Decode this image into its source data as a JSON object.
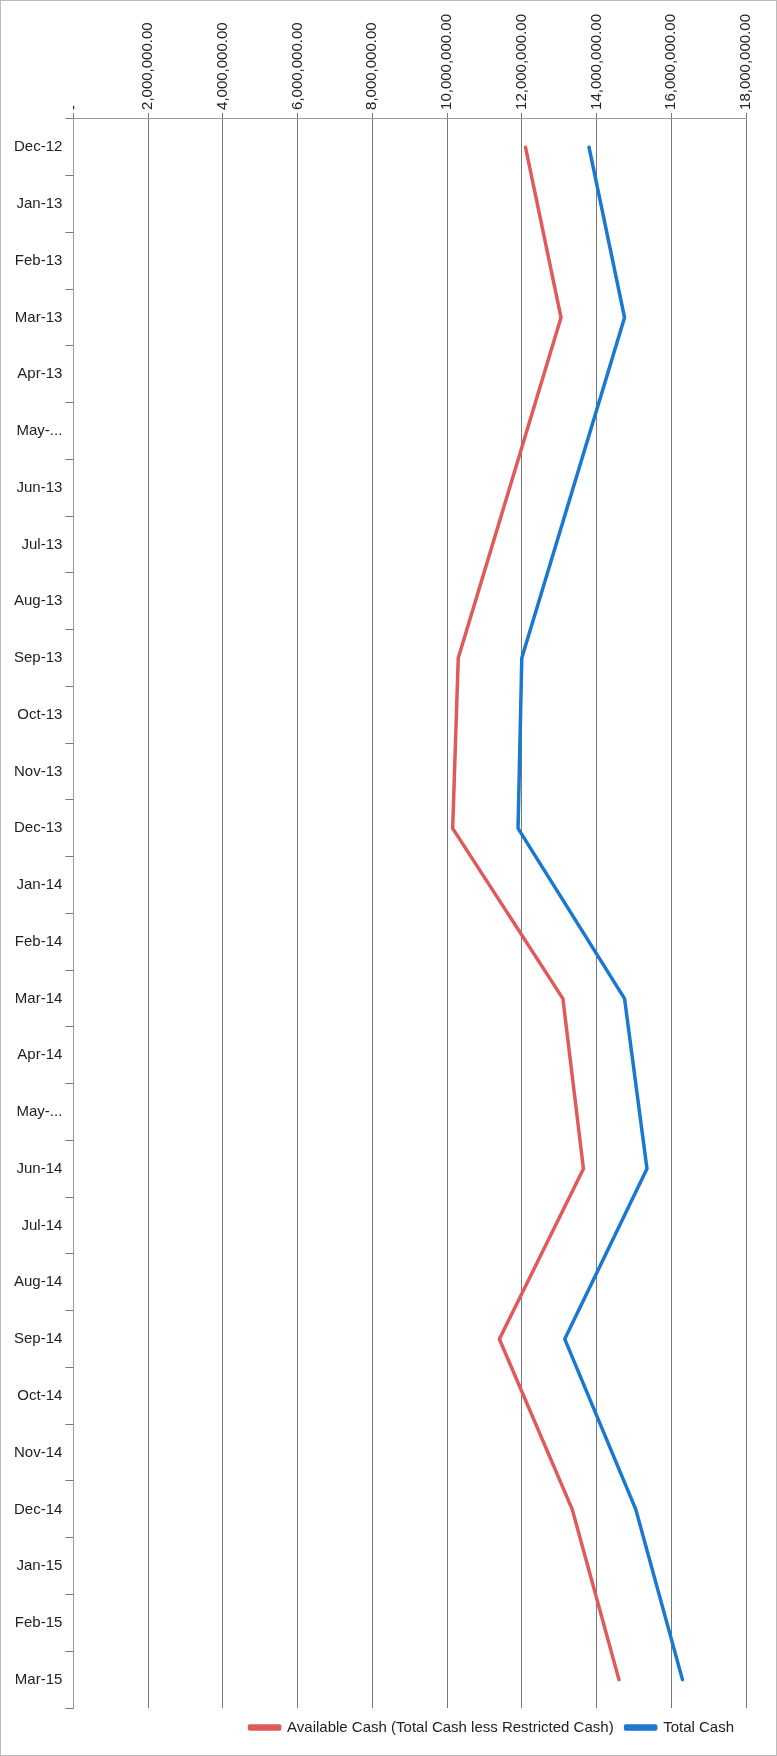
{
  "chart_data": {
    "type": "line",
    "orientation": "horizontal",
    "categories": [
      "Dec-12",
      "Jan-13",
      "Feb-13",
      "Mar-13",
      "Apr-13",
      "May-...",
      "Jun-13",
      "Jul-13",
      "Aug-13",
      "Sep-13",
      "Oct-13",
      "Nov-13",
      "Dec-13",
      "Jan-14",
      "Feb-14",
      "Mar-14",
      "Apr-14",
      "May-...",
      "Jun-14",
      "Jul-14",
      "Aug-14",
      "Sep-14",
      "Oct-14",
      "Nov-14",
      "Dec-14",
      "Jan-15",
      "Feb-15",
      "Mar-15"
    ],
    "series": [
      {
        "name": "Available Cash (Total Cash less Restricted Cash)",
        "color": "#e05a5a",
        "values": [
          12100000,
          null,
          null,
          13050000,
          null,
          null,
          null,
          null,
          null,
          10300000,
          null,
          null,
          10150000,
          null,
          null,
          13100000,
          null,
          null,
          13650000,
          null,
          null,
          11400000,
          null,
          null,
          13350000,
          null,
          null,
          14600000
        ]
      },
      {
        "name": "Total Cash",
        "color": "#1a78d0",
        "values": [
          13800000,
          null,
          null,
          14750000,
          null,
          null,
          null,
          null,
          null,
          12000000,
          null,
          null,
          11900000,
          null,
          null,
          14750000,
          null,
          null,
          15350000,
          null,
          null,
          13150000,
          null,
          null,
          15050000,
          null,
          null,
          16300000
        ]
      }
    ],
    "xlim": [
      0,
      18000000
    ],
    "xticks": [
      {
        "value": 0,
        "label": "-"
      },
      {
        "value": 2000000,
        "label": "2,000,000.00"
      },
      {
        "value": 4000000,
        "label": "4,000,000.00"
      },
      {
        "value": 6000000,
        "label": "6,000,000.00"
      },
      {
        "value": 8000000,
        "label": "8,000,000.00"
      },
      {
        "value": 10000000,
        "label": "10,000,000.00"
      },
      {
        "value": 12000000,
        "label": "12,000,000.00"
      },
      {
        "value": 14000000,
        "label": "14,000,000.00"
      },
      {
        "value": 16000000,
        "label": "16,000,000.00"
      },
      {
        "value": 18000000,
        "label": "18,000,000.00"
      }
    ],
    "grid": "x",
    "legend": "bottom right",
    "marker": "none",
    "line_style": "solid"
  }
}
